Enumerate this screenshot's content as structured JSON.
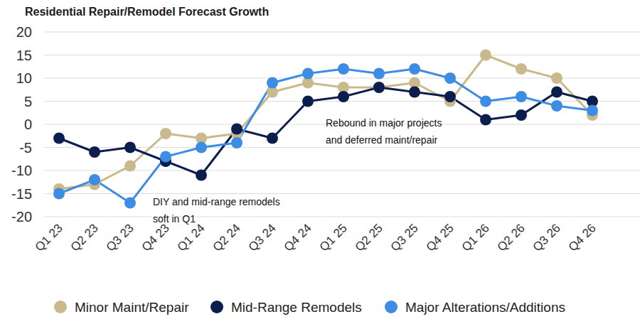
{
  "chart_data": {
    "type": "line",
    "title": "Residential Repair/Remodel Forecast Growth",
    "categories": [
      "Q1 23",
      "Q2 23",
      "Q3 23",
      "Q4 23",
      "Q1 24",
      "Q2 24",
      "Q3 24",
      "Q4 24",
      "Q1 25",
      "Q2 25",
      "Q3 25",
      "Q4 25",
      "Q1 26",
      "Q2 26",
      "Q3 26",
      "Q4 26"
    ],
    "series": [
      {
        "name": "Minor Maint/Repair",
        "color": "#c9b98c",
        "marker": "circle",
        "values": [
          -14,
          -13,
          -9,
          -2,
          -3,
          -2,
          7,
          9,
          8,
          8,
          9,
          5,
          15,
          12,
          10,
          2
        ]
      },
      {
        "name": "Mid-Range Remodels",
        "color": "#0c1e4d",
        "marker": "circle",
        "values": [
          -3,
          -6,
          -5,
          -8,
          -11,
          -1,
          -3,
          5,
          6,
          8,
          7,
          6,
          1,
          2,
          7,
          5
        ]
      },
      {
        "name": "Major Alterations/Additions",
        "color": "#3c8de3",
        "marker": "circle",
        "values": [
          -15,
          -12,
          -17,
          -7,
          -5,
          -4,
          9,
          11,
          12,
          11,
          12,
          10,
          5,
          6,
          4,
          3
        ]
      }
    ],
    "annotations": [
      [
        "DIY and mid-range remodels",
        "soft in Q1"
      ],
      [
        "Rebound in major projects",
        "and deferred maint/repair"
      ]
    ],
    "ylim": [
      -20,
      20
    ],
    "yticks": [
      -20,
      -15,
      -10,
      -5,
      0,
      5,
      10,
      15,
      20
    ],
    "grid": true,
    "legend": "bottom"
  }
}
